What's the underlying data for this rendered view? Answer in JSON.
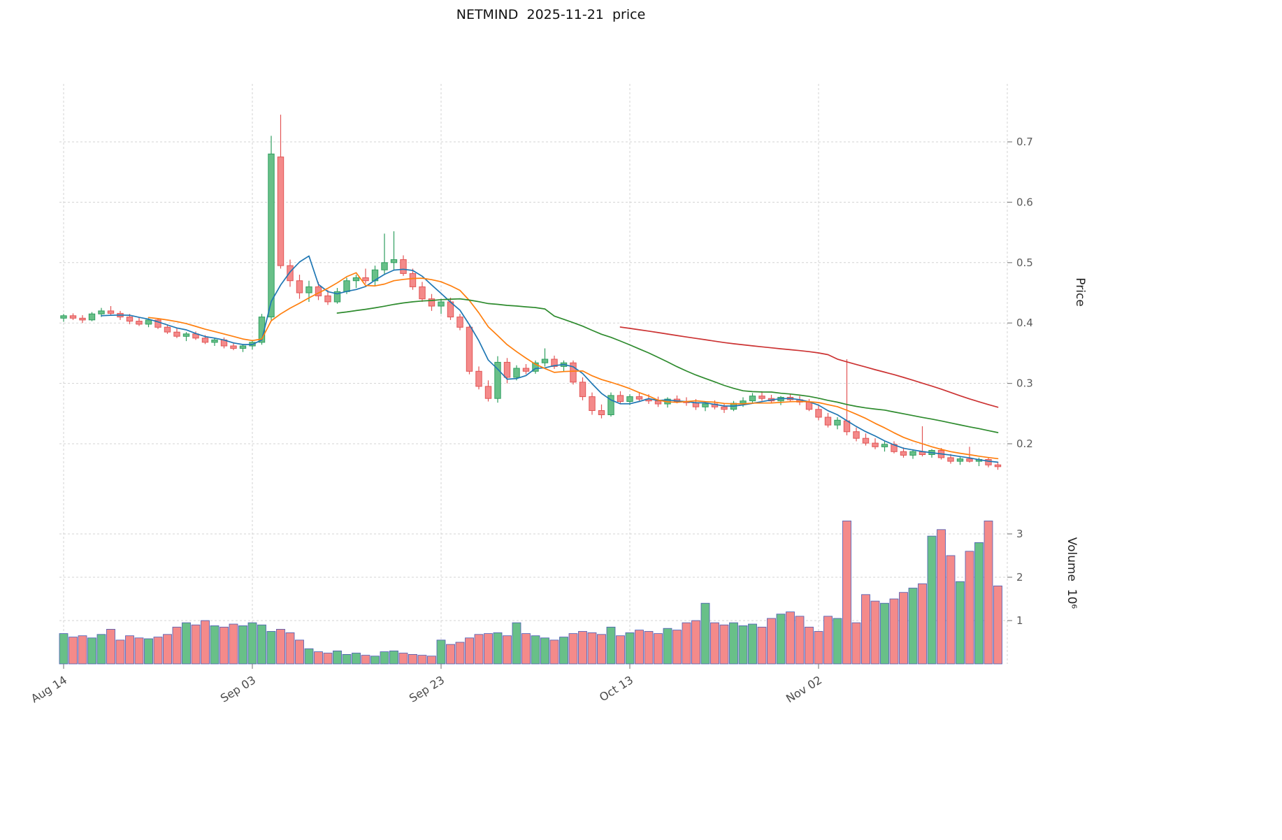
{
  "chart_data": {
    "type": "candlestick",
    "title": "NETMIND  2025-11-21  price",
    "grid": true,
    "legend": false,
    "x_ticks": {
      "labels": [
        "Aug 14",
        "Sep 03",
        "Sep 23",
        "Oct 13",
        "Nov 02"
      ],
      "indices": [
        0,
        20,
        40,
        60,
        80
      ]
    },
    "price_axis": {
      "label": "Price",
      "ticks": [
        0.2,
        0.3,
        0.4,
        0.5,
        0.6,
        0.7
      ],
      "range": [
        0.125,
        0.795
      ],
      "side": "right"
    },
    "volume_axis": {
      "label": "Volume  10⁶",
      "ticks": [
        1,
        2,
        3
      ],
      "range": [
        0,
        3.6
      ],
      "side": "right"
    },
    "indicators": [
      {
        "name": "MA5",
        "window": 5,
        "color": "#1f77b4"
      },
      {
        "name": "MA10",
        "window": 10,
        "color": "#ff7f0e"
      },
      {
        "name": "MA30",
        "window": 30,
        "color": "#2e8b2e"
      },
      {
        "name": "MA60",
        "window": 60,
        "color": "#cc3333"
      }
    ],
    "colors": {
      "up": "#68c088",
      "up_edge": "#2f9e5f",
      "down": "#f48a8a",
      "down_edge": "#e25555",
      "volume_edge": "#4a5ab5",
      "grid": "#d3d3d3"
    },
    "ohlc": [
      [
        0.408,
        0.415,
        0.402,
        0.412
      ],
      [
        0.412,
        0.416,
        0.405,
        0.408
      ],
      [
        0.408,
        0.413,
        0.4,
        0.405
      ],
      [
        0.405,
        0.418,
        0.403,
        0.415
      ],
      [
        0.415,
        0.425,
        0.41,
        0.42
      ],
      [
        0.42,
        0.428,
        0.412,
        0.416
      ],
      [
        0.416,
        0.42,
        0.405,
        0.41
      ],
      [
        0.41,
        0.415,
        0.398,
        0.403
      ],
      [
        0.403,
        0.41,
        0.395,
        0.398
      ],
      [
        0.398,
        0.408,
        0.393,
        0.405
      ],
      [
        0.405,
        0.408,
        0.39,
        0.393
      ],
      [
        0.393,
        0.398,
        0.382,
        0.385
      ],
      [
        0.385,
        0.392,
        0.375,
        0.378
      ],
      [
        0.378,
        0.385,
        0.37,
        0.382
      ],
      [
        0.382,
        0.386,
        0.372,
        0.375
      ],
      [
        0.375,
        0.38,
        0.365,
        0.368
      ],
      [
        0.368,
        0.375,
        0.362,
        0.372
      ],
      [
        0.372,
        0.376,
        0.358,
        0.362
      ],
      [
        0.362,
        0.368,
        0.355,
        0.358
      ],
      [
        0.358,
        0.365,
        0.352,
        0.362
      ],
      [
        0.362,
        0.372,
        0.356,
        0.368
      ],
      [
        0.368,
        0.415,
        0.364,
        0.41
      ],
      [
        0.41,
        0.71,
        0.405,
        0.68
      ],
      [
        0.675,
        0.745,
        0.49,
        0.495
      ],
      [
        0.495,
        0.505,
        0.46,
        0.47
      ],
      [
        0.47,
        0.48,
        0.44,
        0.45
      ],
      [
        0.45,
        0.47,
        0.435,
        0.46
      ],
      [
        0.46,
        0.468,
        0.438,
        0.445
      ],
      [
        0.445,
        0.455,
        0.43,
        0.435
      ],
      [
        0.435,
        0.458,
        0.432,
        0.452
      ],
      [
        0.452,
        0.475,
        0.448,
        0.47
      ],
      [
        0.47,
        0.48,
        0.458,
        0.475
      ],
      [
        0.475,
        0.49,
        0.465,
        0.47
      ],
      [
        0.47,
        0.495,
        0.462,
        0.488
      ],
      [
        0.488,
        0.548,
        0.48,
        0.5
      ],
      [
        0.5,
        0.552,
        0.488,
        0.505
      ],
      [
        0.505,
        0.512,
        0.478,
        0.482
      ],
      [
        0.482,
        0.49,
        0.455,
        0.46
      ],
      [
        0.46,
        0.468,
        0.435,
        0.44
      ],
      [
        0.44,
        0.448,
        0.42,
        0.428
      ],
      [
        0.428,
        0.44,
        0.415,
        0.435
      ],
      [
        0.435,
        0.442,
        0.405,
        0.41
      ],
      [
        0.41,
        0.415,
        0.388,
        0.393
      ],
      [
        0.393,
        0.398,
        0.315,
        0.32
      ],
      [
        0.32,
        0.328,
        0.29,
        0.295
      ],
      [
        0.295,
        0.305,
        0.27,
        0.275
      ],
      [
        0.275,
        0.345,
        0.268,
        0.335
      ],
      [
        0.335,
        0.342,
        0.3,
        0.31
      ],
      [
        0.31,
        0.33,
        0.305,
        0.325
      ],
      [
        0.325,
        0.332,
        0.315,
        0.32
      ],
      [
        0.32,
        0.338,
        0.316,
        0.334
      ],
      [
        0.334,
        0.358,
        0.328,
        0.34
      ],
      [
        0.34,
        0.346,
        0.324,
        0.328
      ],
      [
        0.328,
        0.338,
        0.32,
        0.334
      ],
      [
        0.334,
        0.338,
        0.298,
        0.302
      ],
      [
        0.302,
        0.31,
        0.272,
        0.278
      ],
      [
        0.278,
        0.285,
        0.248,
        0.255
      ],
      [
        0.255,
        0.265,
        0.242,
        0.248
      ],
      [
        0.248,
        0.285,
        0.245,
        0.28
      ],
      [
        0.28,
        0.287,
        0.266,
        0.27
      ],
      [
        0.27,
        0.282,
        0.264,
        0.278
      ],
      [
        0.278,
        0.285,
        0.27,
        0.274
      ],
      [
        0.274,
        0.282,
        0.266,
        0.271
      ],
      [
        0.271,
        0.278,
        0.261,
        0.266
      ],
      [
        0.266,
        0.277,
        0.26,
        0.274
      ],
      [
        0.274,
        0.28,
        0.267,
        0.27
      ],
      [
        0.27,
        0.277,
        0.263,
        0.268
      ],
      [
        0.268,
        0.274,
        0.256,
        0.261
      ],
      [
        0.261,
        0.27,
        0.254,
        0.266
      ],
      [
        0.266,
        0.272,
        0.257,
        0.261
      ],
      [
        0.261,
        0.267,
        0.251,
        0.257
      ],
      [
        0.257,
        0.271,
        0.254,
        0.267
      ],
      [
        0.267,
        0.277,
        0.261,
        0.271
      ],
      [
        0.271,
        0.284,
        0.267,
        0.279
      ],
      [
        0.279,
        0.287,
        0.271,
        0.275
      ],
      [
        0.275,
        0.281,
        0.267,
        0.271
      ],
      [
        0.271,
        0.279,
        0.264,
        0.277
      ],
      [
        0.277,
        0.283,
        0.269,
        0.273
      ],
      [
        0.273,
        0.279,
        0.264,
        0.269
      ],
      [
        0.269,
        0.274,
        0.254,
        0.257
      ],
      [
        0.257,
        0.264,
        0.239,
        0.244
      ],
      [
        0.244,
        0.251,
        0.227,
        0.231
      ],
      [
        0.231,
        0.244,
        0.224,
        0.239
      ],
      [
        0.238,
        0.34,
        0.214,
        0.22
      ],
      [
        0.22,
        0.227,
        0.204,
        0.209
      ],
      [
        0.209,
        0.217,
        0.197,
        0.201
      ],
      [
        0.201,
        0.209,
        0.191,
        0.195
      ],
      [
        0.195,
        0.204,
        0.187,
        0.199
      ],
      [
        0.199,
        0.204,
        0.184,
        0.187
      ],
      [
        0.187,
        0.194,
        0.177,
        0.181
      ],
      [
        0.181,
        0.191,
        0.175,
        0.187
      ],
      [
        0.187,
        0.229,
        0.179,
        0.182
      ],
      [
        0.182,
        0.191,
        0.177,
        0.189
      ],
      [
        0.189,
        0.193,
        0.174,
        0.177
      ],
      [
        0.177,
        0.183,
        0.167,
        0.171
      ],
      [
        0.171,
        0.179,
        0.165,
        0.175
      ],
      [
        0.175,
        0.195,
        0.169,
        0.171
      ],
      [
        0.171,
        0.177,
        0.163,
        0.174
      ],
      [
        0.174,
        0.177,
        0.161,
        0.165
      ],
      [
        0.165,
        0.169,
        0.157,
        0.162
      ]
    ],
    "volume": [
      0.7,
      0.62,
      0.65,
      0.6,
      0.68,
      0.8,
      0.55,
      0.65,
      0.6,
      0.58,
      0.62,
      0.68,
      0.85,
      0.95,
      0.9,
      1.0,
      0.88,
      0.85,
      0.92,
      0.88,
      0.95,
      0.9,
      0.75,
      0.8,
      0.72,
      0.55,
      0.35,
      0.28,
      0.25,
      0.3,
      0.22,
      0.25,
      0.2,
      0.18,
      0.28,
      0.3,
      0.25,
      0.22,
      0.2,
      0.18,
      0.55,
      0.45,
      0.5,
      0.6,
      0.68,
      0.7,
      0.72,
      0.65,
      0.95,
      0.7,
      0.65,
      0.6,
      0.55,
      0.62,
      0.7,
      0.75,
      0.72,
      0.68,
      0.85,
      0.65,
      0.72,
      0.78,
      0.75,
      0.7,
      0.82,
      0.78,
      0.95,
      1.0,
      1.4,
      0.95,
      0.9,
      0.95,
      0.88,
      0.92,
      0.85,
      1.05,
      1.15,
      1.2,
      1.1,
      0.85,
      0.75,
      1.1,
      1.05,
      3.3,
      0.95,
      1.6,
      1.45,
      1.4,
      1.5,
      1.65,
      1.75,
      1.85,
      2.95,
      3.1,
      2.5,
      1.9,
      2.6,
      2.8,
      3.3,
      1.8
    ]
  }
}
